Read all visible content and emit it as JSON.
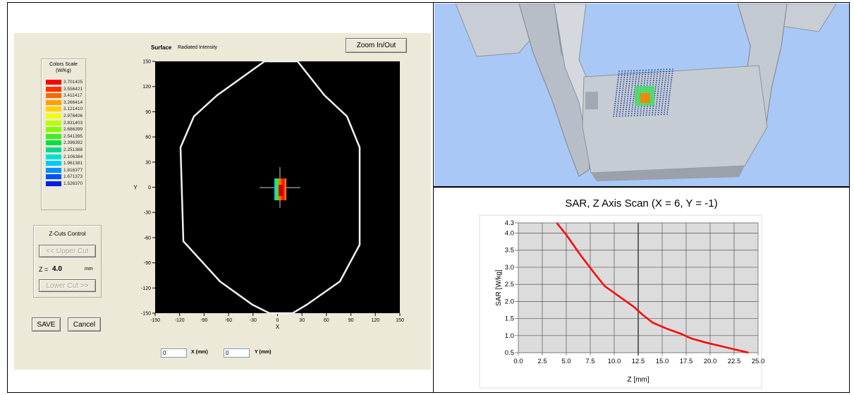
{
  "left_window": {
    "surface_label": "Surface",
    "surface_value": "Radiated Intensity",
    "zoom_button": "Zoom In/Out",
    "color_scale": {
      "title_line1": "Colors Scale",
      "title_line2": "(W/Kg)",
      "entries": [
        {
          "value": "3.701425",
          "color": "#ff0000"
        },
        {
          "value": "3.556421",
          "color": "#ff3000"
        },
        {
          "value": "3.411417",
          "color": "#ff6a00"
        },
        {
          "value": "3.266414",
          "color": "#ffa000"
        },
        {
          "value": "3.121410",
          "color": "#ffd000"
        },
        {
          "value": "2.976406",
          "color": "#f4ff00"
        },
        {
          "value": "2.831403",
          "color": "#b8ff00"
        },
        {
          "value": "2.686399",
          "color": "#80ff00"
        },
        {
          "value": "2.541395",
          "color": "#40f020"
        },
        {
          "value": "2.396392",
          "color": "#00e040"
        },
        {
          "value": "2.251388",
          "color": "#00d890"
        },
        {
          "value": "2.106384",
          "color": "#00e0d0"
        },
        {
          "value": "1.961381",
          "color": "#00c8ff"
        },
        {
          "value": "1.816377",
          "color": "#0090ff"
        },
        {
          "value": "1.671373",
          "color": "#0050ff"
        },
        {
          "value": "1.526370",
          "color": "#0020e0"
        }
      ]
    },
    "zcuts": {
      "title": "Z-Cuts Control",
      "upper_button": "<< Upper Cut",
      "z_label": "Z =",
      "z_value": "4.0",
      "z_unit": "mm",
      "lower_button": "Lower Cut >>"
    },
    "save_button": "SAVE",
    "cancel_button": "Cancel",
    "plot": {
      "x_ticks": [
        "-150",
        "-120",
        "-90",
        "-60",
        "-30",
        "0",
        "30",
        "60",
        "90",
        "120",
        "150"
      ],
      "y_ticks": [
        "150",
        "120",
        "90",
        "60",
        "30",
        "0",
        "-30",
        "-60",
        "-90",
        "-120",
        "-150"
      ],
      "x_label": "X",
      "y_label": "Y"
    },
    "x_field": {
      "value": "0",
      "label": "X (mm)"
    },
    "y_field": {
      "value": "0",
      "label": "Y (mm)"
    }
  },
  "scene_3d": {
    "background": "#a9c8f5",
    "phantom_color": "#c6ccd4"
  },
  "sar_chart_title": "SAR, Z Axis Scan (X = 6, Y = -1)",
  "chart_data": {
    "type": "line",
    "title": "SAR, Z Axis Scan (X = 6, Y = -1)",
    "xlabel": "Z [mm]",
    "ylabel": "SAR [W/kg]",
    "xlim": [
      0.0,
      25.0
    ],
    "ylim": [
      0.5,
      4.3
    ],
    "x_ticks": [
      "0.0",
      "2.5",
      "5.0",
      "7.5",
      "10.0",
      "12.5",
      "15.0",
      "17.5",
      "20.0",
      "22.5",
      "25.0"
    ],
    "y_ticks": [
      "4.3",
      "4.0",
      "3.5",
      "3.0",
      "2.5",
      "2.0",
      "1.5",
      "1.0",
      "0.5"
    ],
    "grid": true,
    "series": [
      {
        "color": "#ff0000",
        "x": [
          4.0,
          5.0,
          6.5,
          8.0,
          9.0,
          10.5,
          12.0,
          13.0,
          14.0,
          15.5,
          17.0,
          18.0,
          19.5,
          21.0,
          22.5,
          24.0
        ],
        "y": [
          4.3,
          3.95,
          3.35,
          2.8,
          2.45,
          2.15,
          1.85,
          1.6,
          1.38,
          1.2,
          1.05,
          0.92,
          0.8,
          0.7,
          0.6,
          0.5
        ]
      }
    ]
  }
}
